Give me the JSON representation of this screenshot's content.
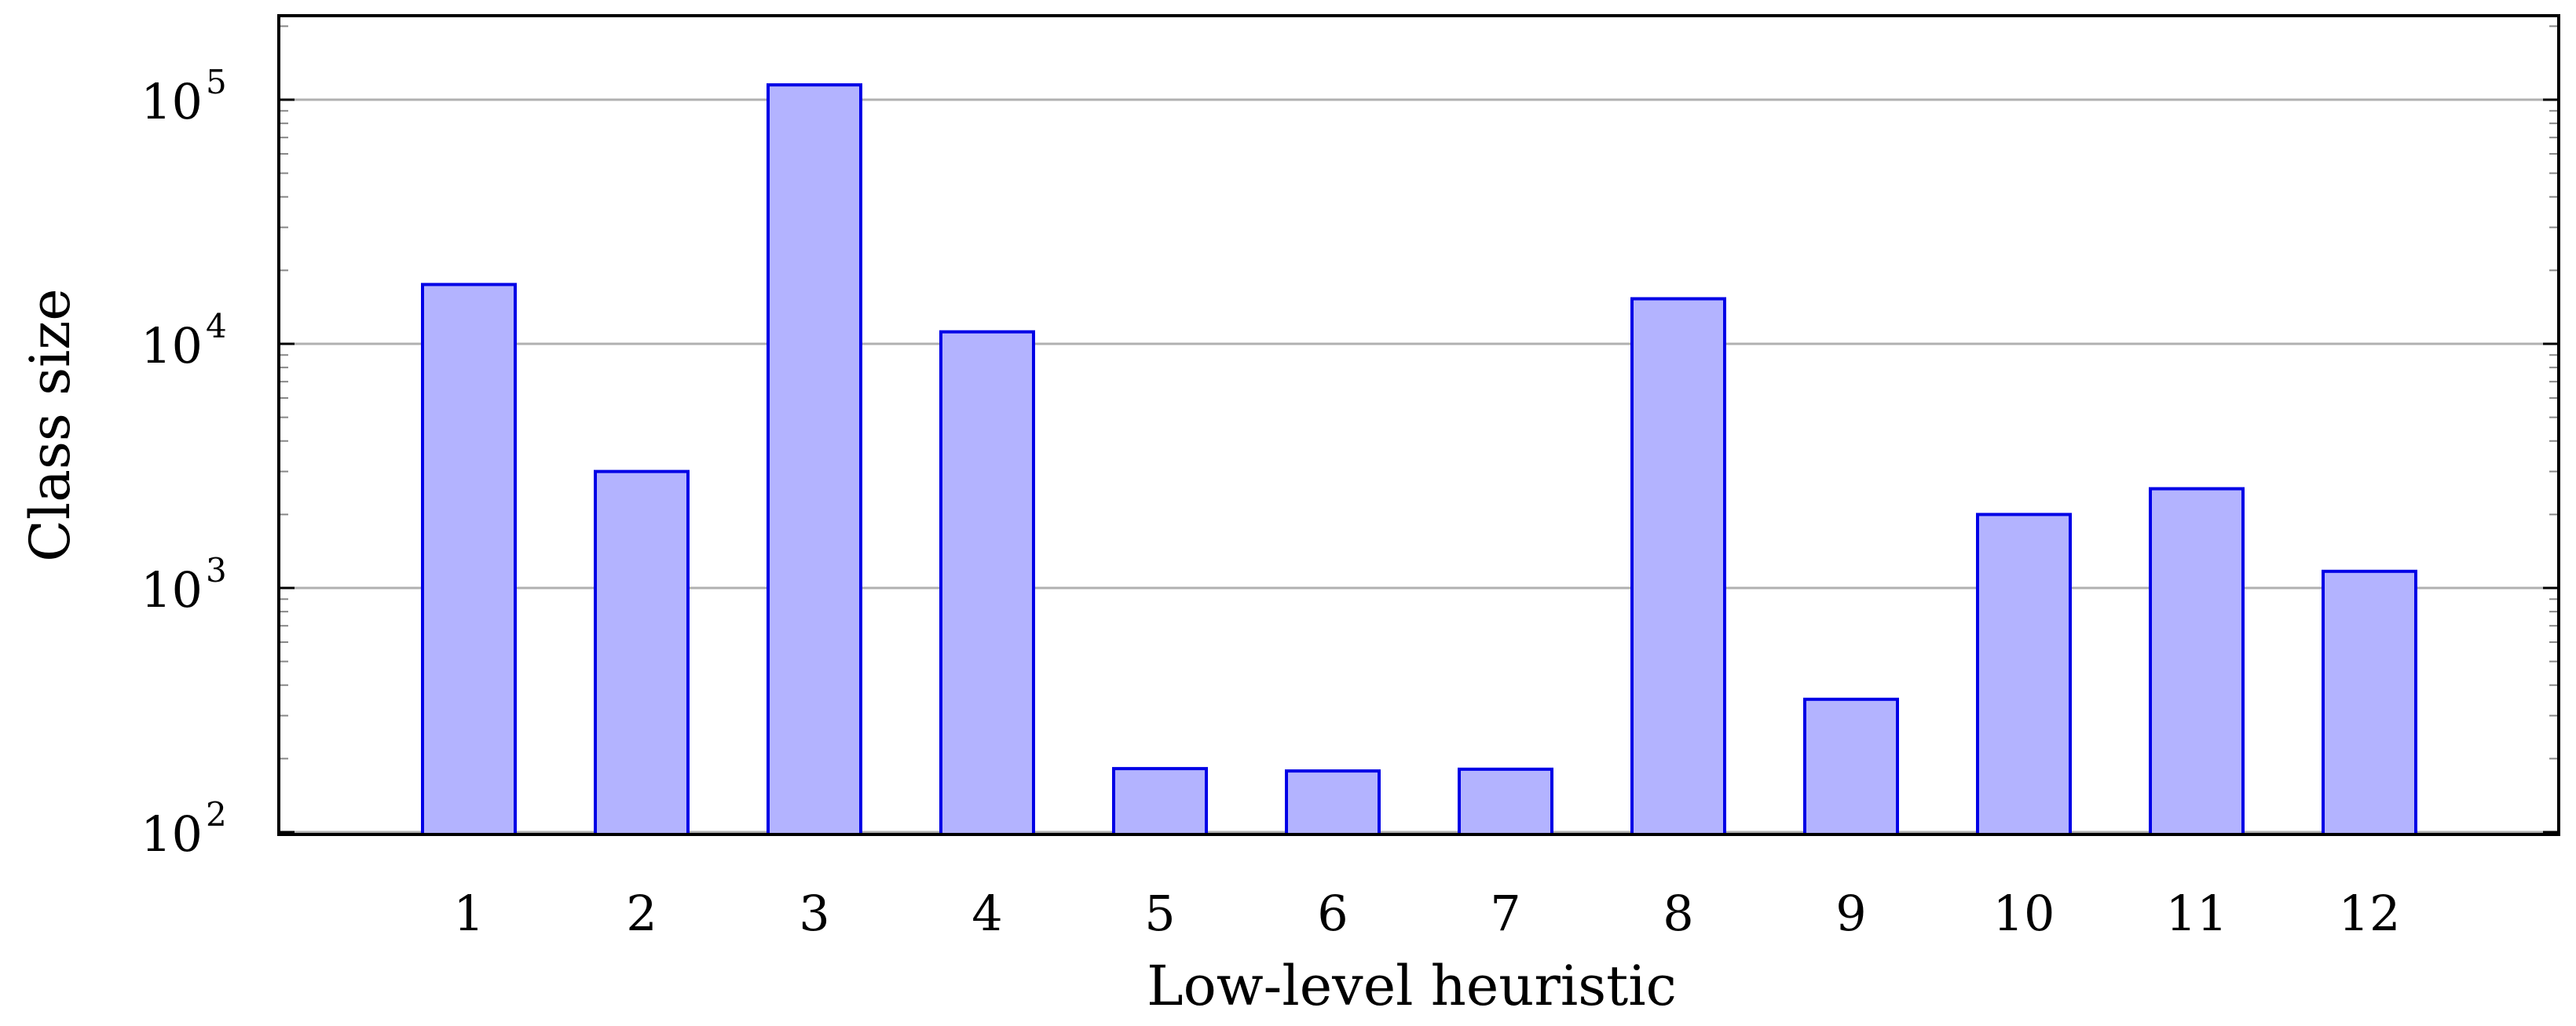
{
  "chart_data": {
    "type": "bar",
    "xlabel": "Low-level heuristic",
    "ylabel": "Class size",
    "yscale": "log",
    "ylim": [
      100,
      170000
    ],
    "grid": "major-y",
    "categories": [
      "1",
      "2",
      "3",
      "4",
      "5",
      "6",
      "7",
      "8",
      "9",
      "10",
      "11",
      "12"
    ],
    "values": [
      17500,
      3000,
      115000,
      11200,
      182,
      178,
      181,
      15300,
      350,
      2000,
      2550,
      1170
    ],
    "yticks": [
      {
        "base": "10",
        "exp": "2",
        "value": 100
      },
      {
        "base": "10",
        "exp": "3",
        "value": 1000
      },
      {
        "base": "10",
        "exp": "4",
        "value": 10000
      },
      {
        "base": "10",
        "exp": "5",
        "value": 100000
      }
    ],
    "colors": {
      "bar_fill": "#b3b3ff",
      "bar_stroke": "#0000e6",
      "grid": "#b0b0b0",
      "axis": "#000000",
      "minor_tick": "#888888"
    }
  }
}
